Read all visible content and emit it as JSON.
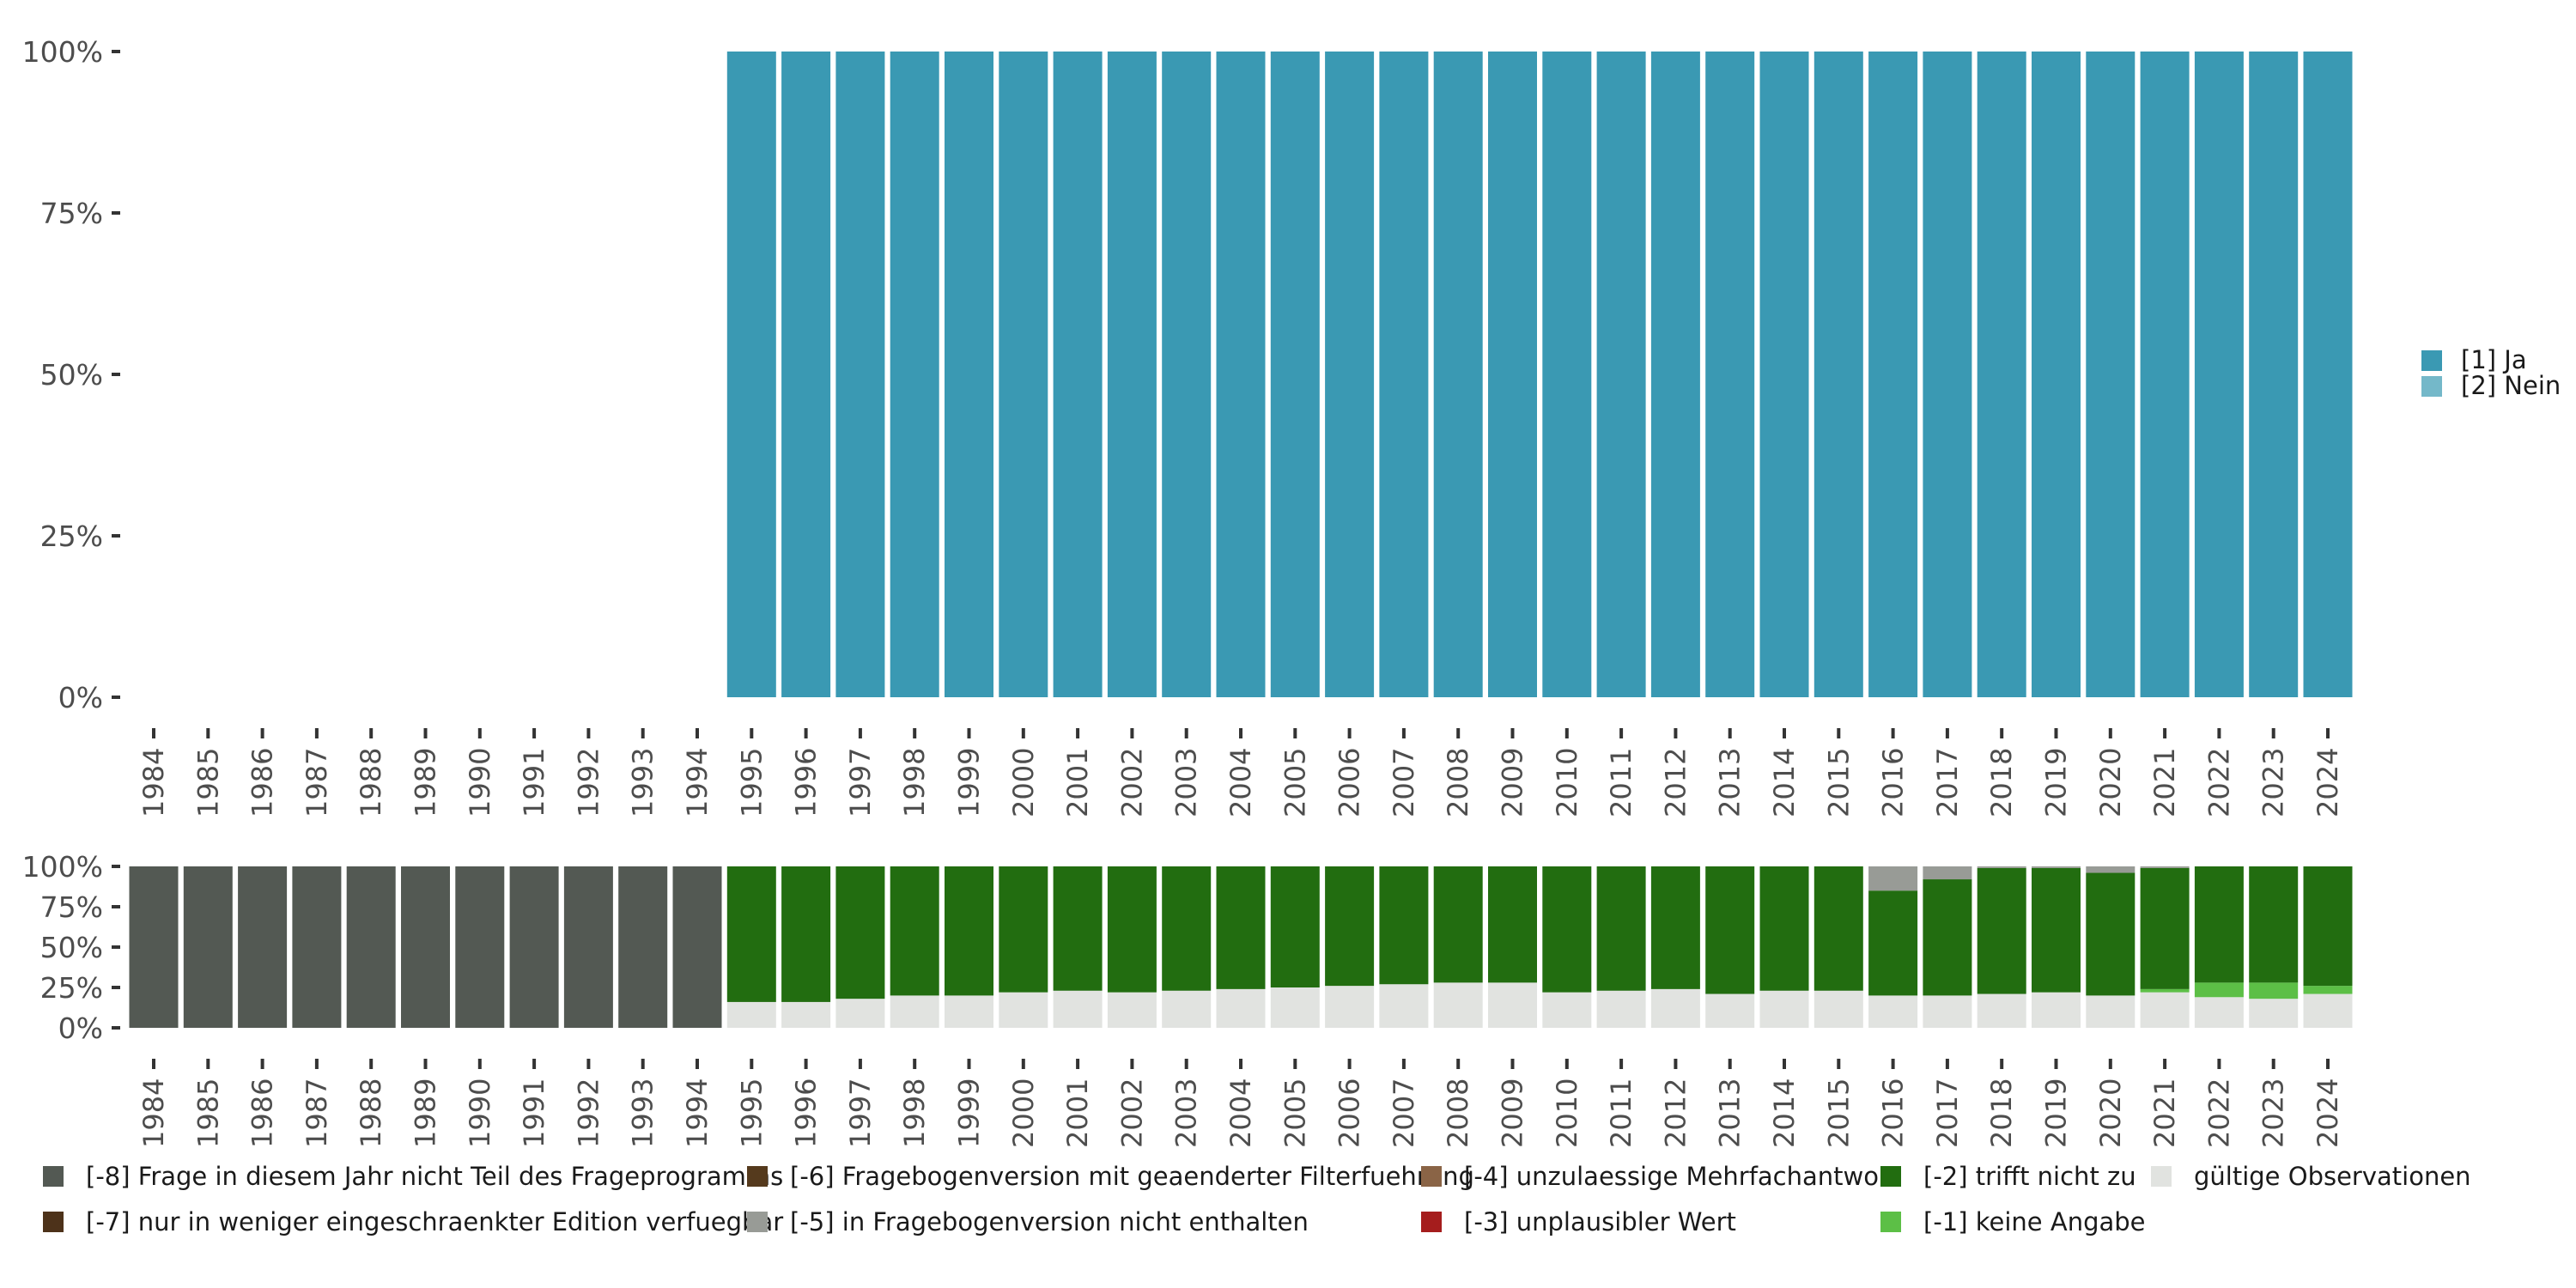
{
  "chart_data": [
    {
      "type": "bar",
      "stacked": true,
      "title": "",
      "xlabel": "",
      "ylabel": "",
      "ylim": [
        0,
        100
      ],
      "y_ticks": [
        "0%",
        "25%",
        "50%",
        "75%",
        "100%"
      ],
      "categories": [
        "1984",
        "1985",
        "1986",
        "1987",
        "1988",
        "1989",
        "1990",
        "1991",
        "1992",
        "1993",
        "1994",
        "1995",
        "1996",
        "1997",
        "1998",
        "1999",
        "2000",
        "2001",
        "2002",
        "2003",
        "2004",
        "2005",
        "2006",
        "2007",
        "2008",
        "2009",
        "2010",
        "2011",
        "2012",
        "2013",
        "2014",
        "2015",
        "2016",
        "2017",
        "2018",
        "2019",
        "2020",
        "2021",
        "2022",
        "2023",
        "2024"
      ],
      "legend_position": "right",
      "series": [
        {
          "name": "[1] Ja",
          "color": "#3a99b3",
          "values": [
            null,
            null,
            null,
            null,
            null,
            null,
            null,
            null,
            null,
            null,
            null,
            100,
            100,
            100,
            100,
            100,
            100,
            100,
            100,
            100,
            100,
            100,
            100,
            100,
            100,
            100,
            100,
            100,
            100,
            100,
            100,
            100,
            100,
            100,
            100,
            100,
            100,
            100,
            100,
            100,
            100
          ]
        },
        {
          "name": "[2] Nein",
          "color": "#74b8c9",
          "values": [
            null,
            null,
            null,
            null,
            null,
            null,
            null,
            null,
            null,
            null,
            null,
            0,
            0,
            0,
            0,
            0,
            0,
            0,
            0,
            0,
            0,
            0,
            0,
            0,
            0,
            0,
            0,
            0,
            0,
            0,
            0,
            0,
            0,
            0,
            0,
            0,
            0,
            0,
            0,
            0,
            0
          ]
        }
      ]
    },
    {
      "type": "bar",
      "stacked": true,
      "title": "",
      "ylim": [
        0,
        100
      ],
      "y_ticks": [
        "0%",
        "25%",
        "50%",
        "75%",
        "100%"
      ],
      "categories": [
        "1984",
        "1985",
        "1986",
        "1987",
        "1988",
        "1989",
        "1990",
        "1991",
        "1992",
        "1993",
        "1994",
        "1995",
        "1996",
        "1997",
        "1998",
        "1999",
        "2000",
        "2001",
        "2002",
        "2003",
        "2004",
        "2005",
        "2006",
        "2007",
        "2008",
        "2009",
        "2010",
        "2011",
        "2012",
        "2013",
        "2014",
        "2015",
        "2016",
        "2017",
        "2018",
        "2019",
        "2020",
        "2021",
        "2022",
        "2023",
        "2024"
      ],
      "legend_position": "bottom",
      "series": [
        {
          "name": "gültige Observationen",
          "color": "#e1e3e0",
          "values": [
            0,
            0,
            0,
            0,
            0,
            0,
            0,
            0,
            0,
            0,
            0,
            16,
            16,
            18,
            20,
            20,
            22,
            23,
            22,
            23,
            24,
            25,
            26,
            27,
            28,
            28,
            22,
            23,
            24,
            21,
            23,
            23,
            20,
            20,
            21,
            22,
            20,
            22,
            19,
            18,
            21
          ]
        },
        {
          "name": "[-1] keine Angabe",
          "color": "#5cbf46",
          "values": [
            0,
            0,
            0,
            0,
            0,
            0,
            0,
            0,
            0,
            0,
            0,
            0,
            0,
            0,
            0,
            0,
            0,
            0,
            0,
            0,
            0,
            0,
            0,
            0,
            0,
            0,
            0,
            0,
            0,
            0,
            0,
            0,
            0,
            0,
            0,
            0,
            0,
            2,
            9,
            10,
            5
          ]
        },
        {
          "name": "[-2] trifft nicht zu",
          "color": "#226d10",
          "values": [
            0,
            0,
            0,
            0,
            0,
            0,
            0,
            0,
            0,
            0,
            0,
            84,
            84,
            82,
            80,
            80,
            78,
            77,
            78,
            77,
            76,
            75,
            74,
            73,
            72,
            72,
            78,
            77,
            76,
            79,
            77,
            77,
            65,
            72,
            78,
            77,
            76,
            75,
            72,
            72,
            74
          ]
        },
        {
          "name": "[-3] unplausibler Wert",
          "color": "#a51d1d",
          "values": [
            0,
            0,
            0,
            0,
            0,
            0,
            0,
            0,
            0,
            0,
            0,
            0,
            0,
            0,
            0,
            0,
            0,
            0,
            0,
            0,
            0,
            0,
            0,
            0,
            0,
            0,
            0,
            0,
            0,
            0,
            0,
            0,
            0,
            0,
            0,
            0,
            0,
            0,
            0,
            0,
            0
          ]
        },
        {
          "name": "[-4] unzulaessige Mehrfachantwort",
          "color": "#8a6446",
          "values": [
            0,
            0,
            0,
            0,
            0,
            0,
            0,
            0,
            0,
            0,
            0,
            0,
            0,
            0,
            0,
            0,
            0,
            0,
            0,
            0,
            0,
            0,
            0,
            0,
            0,
            0,
            0,
            0,
            0,
            0,
            0,
            0,
            0,
            0,
            0,
            0,
            0,
            0,
            0,
            0,
            0
          ]
        },
        {
          "name": "[-5] in Fragebogenversion nicht enthalten",
          "color": "#989b96",
          "values": [
            0,
            0,
            0,
            0,
            0,
            0,
            0,
            0,
            0,
            0,
            0,
            0,
            0,
            0,
            0,
            0,
            0,
            0,
            0,
            0,
            0,
            0,
            0,
            0,
            0,
            0,
            0,
            0,
            0,
            0,
            0,
            0,
            15,
            8,
            1,
            1,
            4,
            1,
            0,
            0,
            0
          ]
        },
        {
          "name": "[-6] Fragebogenversion mit geaenderter Filterfuehrung",
          "color": "#553a1d",
          "values": [
            0,
            0,
            0,
            0,
            0,
            0,
            0,
            0,
            0,
            0,
            0,
            0,
            0,
            0,
            0,
            0,
            0,
            0,
            0,
            0,
            0,
            0,
            0,
            0,
            0,
            0,
            0,
            0,
            0,
            0,
            0,
            0,
            0,
            0,
            0,
            0,
            0,
            0,
            0,
            0,
            0
          ]
        },
        {
          "name": "[-7] nur in weniger eingeschraenkter Edition verfuegbar",
          "color": "#4d321a",
          "values": [
            0,
            0,
            0,
            0,
            0,
            0,
            0,
            0,
            0,
            0,
            0,
            0,
            0,
            0,
            0,
            0,
            0,
            0,
            0,
            0,
            0,
            0,
            0,
            0,
            0,
            0,
            0,
            0,
            0,
            0,
            0,
            0,
            0,
            0,
            0,
            0,
            0,
            0,
            0,
            0,
            0
          ]
        },
        {
          "name": "[-8] Frage in diesem Jahr nicht Teil des Frageprogramms",
          "color": "#535953",
          "values": [
            100,
            100,
            100,
            100,
            100,
            100,
            100,
            100,
            100,
            100,
            100,
            0,
            0,
            0,
            0,
            0,
            0,
            0,
            0,
            0,
            0,
            0,
            0,
            0,
            0,
            0,
            0,
            0,
            0,
            0,
            0,
            0,
            0,
            0,
            0,
            0,
            0,
            0,
            0,
            0,
            0
          ]
        }
      ]
    }
  ]
}
